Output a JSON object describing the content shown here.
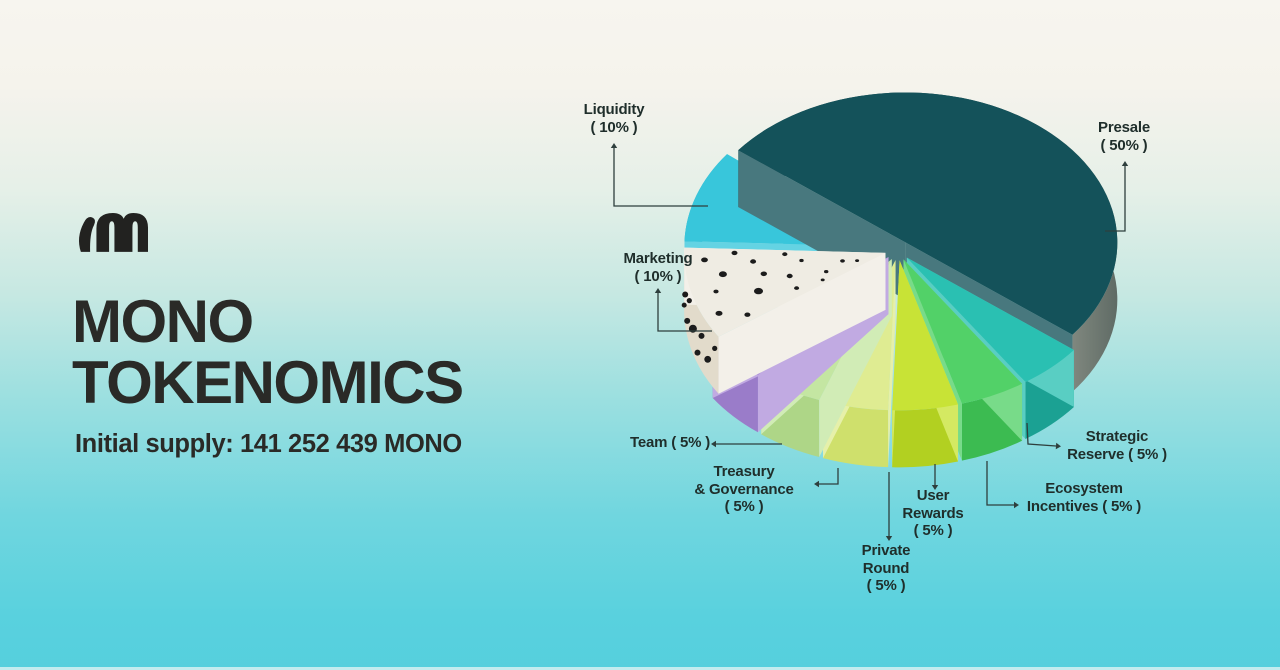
{
  "brand": {
    "logo": "mono-m-logo",
    "title_line1": "MONO",
    "title_line2": "TOKENOMICS",
    "supply_text": "Initial supply: 141 252 439 MONO"
  },
  "colors": {
    "background_top": "#f7f5ef",
    "background_bottom": "#55cfdd",
    "headline_text": "#2a2a27",
    "label_text": "#1f2e2b",
    "connector_line": "#2e3f3d",
    "marketing_dots": "#1c1c1c"
  },
  "chart_data": {
    "type": "pie",
    "style": "3d-exploded",
    "title": "MONO TOKENOMICS",
    "units": "%",
    "initial_supply": "141 252 439 MONO",
    "legend_position": "around-slices",
    "slices": [
      {
        "id": "presale",
        "label": "Presale",
        "value": 50,
        "label_lines": [
          "Presale",
          "( 50% )"
        ],
        "color_top": "#14525a",
        "color_side": "#0d4048"
      },
      {
        "id": "strategic-reserve",
        "label": "Strategic Reserve",
        "value": 5,
        "label_lines": [
          "Strategic",
          "Reserve ( 5% )"
        ],
        "color_top": "#2ac0b2",
        "color_side": "#1ba193"
      },
      {
        "id": "ecosystem-incentives",
        "label": "Ecosystem Incentives",
        "value": 5,
        "label_lines": [
          "Ecosystem",
          "Incentives ( 5% )"
        ],
        "color_top": "#52d168",
        "color_side": "#3cbb51"
      },
      {
        "id": "user-rewards",
        "label": "User Rewards",
        "value": 5,
        "label_lines": [
          "User",
          "Rewards",
          "( 5% )"
        ],
        "color_top": "#c8e336",
        "color_side": "#b2d021"
      },
      {
        "id": "private-round",
        "label": "Private Round",
        "value": 5,
        "label_lines": [
          "Private",
          "Round",
          "( 5% )"
        ],
        "color_top": "#dfec92",
        "color_side": "#cfe06c"
      },
      {
        "id": "treasury-governance",
        "label": "Treasury & Governance",
        "value": 5,
        "label_lines": [
          "Treasury",
          "& Governance",
          "( 5% )"
        ],
        "color_top": "#c4e6a2",
        "color_side": "#aed687"
      },
      {
        "id": "team",
        "label": "Team",
        "value": 5,
        "label_lines": [
          "Team ( 5% )"
        ],
        "color_top": "#af92da",
        "color_side": "#9a7cc9"
      },
      {
        "id": "marketing",
        "label": "Marketing",
        "value": 10,
        "label_lines": [
          "Marketing",
          "( 10% )"
        ],
        "color_top": "#efece3",
        "color_side": "#e2dbcb"
      },
      {
        "id": "liquidity",
        "label": "Liquidity",
        "value": 10,
        "label_lines": [
          "Liquidity",
          "( 10% )"
        ],
        "color_top": "#38c6db",
        "color_side": "#28a9c4"
      }
    ]
  }
}
